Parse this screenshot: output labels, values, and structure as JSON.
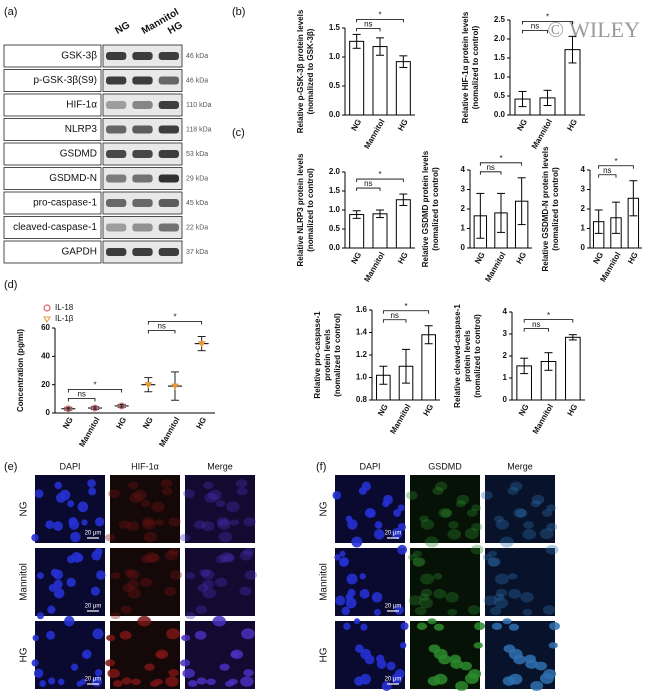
{
  "watermark": "© WILEY",
  "blot": {
    "panel": "(a)",
    "groups": [
      "NG",
      "Mannitol",
      "HG"
    ],
    "rows": [
      {
        "protein": "GSK-3β",
        "size": "46 kDa"
      },
      {
        "protein": "p-GSK-3β(S9)",
        "size": "46 kDa"
      },
      {
        "protein": "HIF-1α",
        "size": "110 kDa"
      },
      {
        "protein": "NLRP3",
        "size": "118 kDa"
      },
      {
        "protein": "GSDMD",
        "size": "53 kDa"
      },
      {
        "protein": "GSDMD-N",
        "size": "29 kDa"
      },
      {
        "protein": "pro-caspase-1",
        "size": "45 kDa"
      },
      {
        "protein": "cleaved-caspase-1",
        "size": "22 kDa"
      },
      {
        "protein": "GAPDH",
        "size": "37 kDa"
      }
    ]
  },
  "chart_data": [
    {
      "type": "bar",
      "panel": "(b)",
      "ylabel": [
        "Relative p-GSK-3β protein levels",
        "(nomalized to GSK-3β)"
      ],
      "categories": [
        "NG",
        "Mannitol",
        "HG"
      ],
      "values": [
        1.27,
        1.18,
        0.92
      ],
      "errors": [
        0.12,
        0.15,
        0.1
      ],
      "color": "#ffffff",
      "ylim": [
        0,
        1.5
      ],
      "yticks": [
        {
          "value": 0,
          "label": "0.0"
        },
        0.5,
        {
          "value": 1,
          "label": "1.0"
        },
        1.5
      ],
      "annotations": [
        "ns",
        "*"
      ]
    },
    {
      "type": "bar",
      "ylabel": [
        "Relative HIF-1α protein levels",
        "(nomalized to control)"
      ],
      "categories": [
        "NG",
        "Mannitol",
        "HG"
      ],
      "values": [
        0.42,
        0.45,
        1.72
      ],
      "errors": [
        0.2,
        0.2,
        0.35
      ],
      "color": "#ffffff",
      "ylim": [
        0,
        2.5
      ],
      "yticks": [
        {
          "value": 0,
          "label": "0.0"
        },
        0.5,
        {
          "value": 1,
          "label": "1.0"
        },
        1.5,
        {
          "value": 2,
          "label": "2.0"
        },
        2.5
      ],
      "annotations": [
        "ns",
        "*"
      ]
    },
    {
      "type": "bar",
      "panel": "(c)",
      "ylabel": [
        "Relative NLRP3 protein levels",
        "(nomalized to control)"
      ],
      "categories": [
        "NG",
        "Mannitol",
        "HG"
      ],
      "values": [
        0.88,
        0.9,
        1.27
      ],
      "errors": [
        0.1,
        0.1,
        0.15
      ],
      "color": "#ffffff",
      "ylim": [
        0,
        2
      ],
      "yticks": [
        {
          "value": 0,
          "label": "0.0"
        },
        0.5,
        {
          "value": 1,
          "label": "1.0"
        },
        1.5,
        {
          "value": 2,
          "label": "2.0"
        }
      ],
      "annotations": [
        "ns",
        "*"
      ]
    },
    {
      "type": "bar",
      "ylabel": [
        "Relative GSDMD protein levels",
        "(nomalized to control)"
      ],
      "categories": [
        "NG",
        "Mannitol",
        "HG"
      ],
      "values": [
        1.65,
        1.8,
        2.4
      ],
      "errors": [
        1.15,
        1.0,
        1.2
      ],
      "color": "#ffffff",
      "ylim": [
        0,
        4
      ],
      "yticks": [
        0,
        1,
        2,
        3,
        4
      ],
      "annotations": [
        "ns",
        "*"
      ]
    },
    {
      "type": "bar",
      "ylabel": [
        "Relative GSDMD-N protein levels",
        "(nomalized to control)"
      ],
      "categories": [
        "NG",
        "Mannitol",
        "HG"
      ],
      "values": [
        1.35,
        1.55,
        2.55
      ],
      "errors": [
        0.6,
        0.8,
        0.9
      ],
      "color": "#ffffff",
      "ylim": [
        0,
        4
      ],
      "yticks": [
        0,
        1,
        2,
        3,
        4
      ],
      "annotations": [
        "ns",
        "*"
      ]
    },
    {
      "type": "bar",
      "ylabel": [
        "Relative pro-caspase-1",
        "protein levels",
        "(nomalized to control)"
      ],
      "categories": [
        "NG",
        "Mannitol",
        "HG"
      ],
      "values": [
        1.02,
        1.1,
        1.38
      ],
      "errors": [
        0.08,
        0.15,
        0.08
      ],
      "color": "#ffffff",
      "ylim": [
        0.8,
        1.6
      ],
      "yticks": [
        0.8,
        {
          "value": 1,
          "label": "1.0"
        },
        1.2,
        1.4,
        1.6
      ],
      "annotations": [
        "ns",
        "*"
      ]
    },
    {
      "type": "bar",
      "ylabel": [
        "Relative cleaved-caspase-1",
        "protein levels",
        "(nomalized to control)"
      ],
      "categories": [
        "NG",
        "Mannitol",
        "HG"
      ],
      "values": [
        1.55,
        1.75,
        2.85
      ],
      "errors": [
        0.35,
        0.4,
        0.12
      ],
      "color": "#ffffff",
      "ylim": [
        0,
        4
      ],
      "yticks": [
        0,
        1,
        2,
        3,
        4
      ],
      "annotations": [
        "ns",
        "*"
      ]
    },
    {
      "type": "dot",
      "panel": "(d)",
      "ylabel": [
        "Concentration (pg/ml)"
      ],
      "categories": [
        "NG",
        "Mannitol",
        "HG",
        "NG",
        "Mannitol",
        "HG"
      ],
      "series": [
        {
          "name": "IL-18",
          "color": "#d9606a",
          "values": [
            3,
            3.5,
            5,
            null,
            null,
            null
          ],
          "errors": [
            1,
            1,
            1,
            null,
            null,
            null
          ]
        },
        {
          "name": "IL-1β",
          "color": "#e89a3a",
          "values": [
            null,
            null,
            null,
            20,
            19,
            49
          ],
          "errors": [
            null,
            null,
            null,
            5,
            10,
            5
          ]
        }
      ],
      "ylim": [
        0,
        60
      ],
      "yticks": [
        0,
        20,
        40,
        60
      ],
      "annotations": [
        "ns",
        "*",
        "ns",
        "*"
      ],
      "legend": "upper-left"
    }
  ],
  "microscopy": [
    {
      "panel": "(e)",
      "columns": [
        "DAPI",
        "HIF-1α",
        "Merge"
      ],
      "rows": [
        "NG",
        "Mannitol",
        "HG"
      ],
      "scale_bar": "20 μm"
    },
    {
      "panel": "(f)",
      "columns": [
        "DAPI",
        "GSDMD",
        "Merge"
      ],
      "rows": [
        "NG",
        "Mannitol",
        "HG"
      ],
      "scale_bar": "20 μm"
    }
  ]
}
